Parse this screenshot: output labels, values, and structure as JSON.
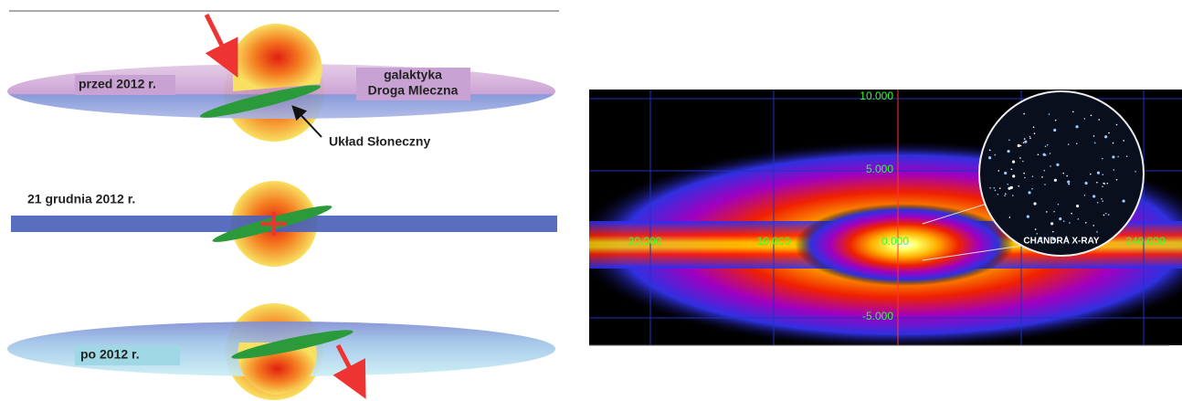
{
  "left_diagram": {
    "panels": [
      {
        "label": "przed 2012 r.",
        "galaxy_label": [
          "galaktyka",
          "Droga Mleczna"
        ],
        "solar_system_label": "Układ Słoneczny"
      },
      {
        "label": "21 grudnia 2012 r."
      },
      {
        "label": "po 2012 r."
      }
    ]
  },
  "right_map": {
    "y_tick_labels": [
      "10.000",
      "5.000",
      "-5.000"
    ],
    "x_tick_labels": [
      "20.000",
      "10.000",
      "0.000",
      "240.000"
    ],
    "inset_label": "CHANDRA X-RAY"
  }
}
